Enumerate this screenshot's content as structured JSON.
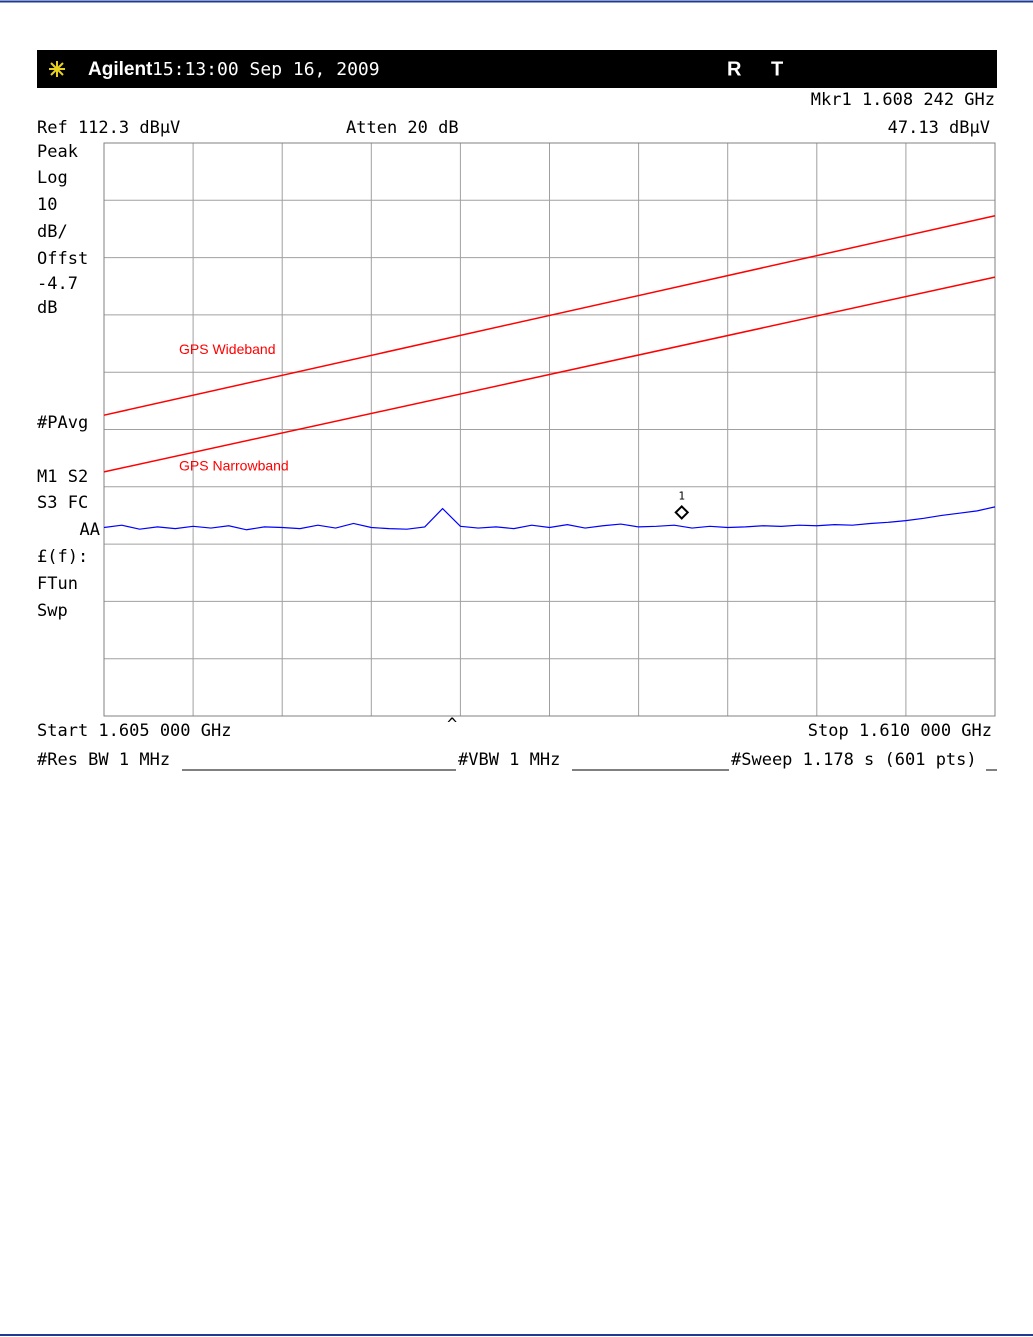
{
  "chart_data": {
    "type": "line",
    "brand": "Agilent",
    "timestamp": "15:13:00  Sep 16, 2009",
    "status": [
      "R",
      "T"
    ],
    "marker_readout": "Mkr1  1.608 242 GHz",
    "marker_level": "47.13 dBµV",
    "reference": "Ref 112.3 dBµV",
    "attenuation": "Atten 20 dB",
    "side_panel": [
      "Peak",
      "Log",
      "10",
      "dB/",
      "Offst",
      "-4.7",
      "dB",
      "#PAvg",
      "M1  S2",
      "S3  FC",
      "AA",
      "£(f):",
      "FTun",
      "Swp"
    ],
    "start": "Start 1.605 000 GHz",
    "center_mark": "^",
    "stop": "Stop 1.610 000 GHz",
    "res_bw": "#Res BW 1 MHz",
    "vbw": "#VBW 1 MHz",
    "sweep": "#Sweep 1.178 s (601 pts)",
    "xlim": [
      1.605,
      1.61
    ],
    "ylim": [
      12.3,
      112.3
    ],
    "grid": true,
    "series": [
      {
        "name": "GPS Wideband",
        "color": "#ff0000",
        "x": [
          1.605,
          1.61
        ],
        "values": [
          64.8,
          99.6
        ]
      },
      {
        "name": "GPS Narrowband",
        "color": "#ff0000",
        "x": [
          1.605,
          1.61
        ],
        "values": [
          54.9,
          88.9
        ]
      }
    ],
    "trace": {
      "color": "#0000ff",
      "x": [
        1.605,
        1.6051,
        1.6052,
        1.6053,
        1.6054,
        1.6055,
        1.6056,
        1.6057,
        1.6058,
        1.6059,
        1.606,
        1.6061,
        1.6062,
        1.6063,
        1.6064,
        1.6065,
        1.6066,
        1.6067,
        1.6068,
        1.6069,
        1.607,
        1.6071,
        1.6072,
        1.6073,
        1.6074,
        1.6075,
        1.6076,
        1.6077,
        1.6078,
        1.6079,
        1.608,
        1.6081,
        1.6082,
        1.6083,
        1.6084,
        1.6085,
        1.6086,
        1.6087,
        1.6088,
        1.6089,
        1.609,
        1.6091,
        1.6092,
        1.6093,
        1.6094,
        1.6095,
        1.6096,
        1.6097,
        1.6098,
        1.6099,
        1.61
      ],
      "values": [
        45.2,
        45.6,
        44.9,
        45.3,
        45.0,
        45.4,
        45.1,
        45.5,
        44.8,
        45.3,
        45.2,
        45.0,
        45.6,
        45.1,
        45.9,
        45.2,
        45.0,
        44.9,
        45.3,
        48.5,
        45.4,
        45.1,
        45.3,
        45.0,
        45.6,
        45.2,
        45.7,
        45.1,
        45.5,
        45.8,
        45.3,
        45.4,
        45.6,
        45.1,
        45.4,
        45.2,
        45.3,
        45.5,
        45.4,
        45.6,
        45.5,
        45.7,
        45.6,
        45.9,
        46.1,
        46.4,
        46.8,
        47.3,
        47.7,
        48.1,
        48.8
      ]
    },
    "marker": {
      "label": "1",
      "x": 1.608242,
      "value": 47.13
    }
  }
}
